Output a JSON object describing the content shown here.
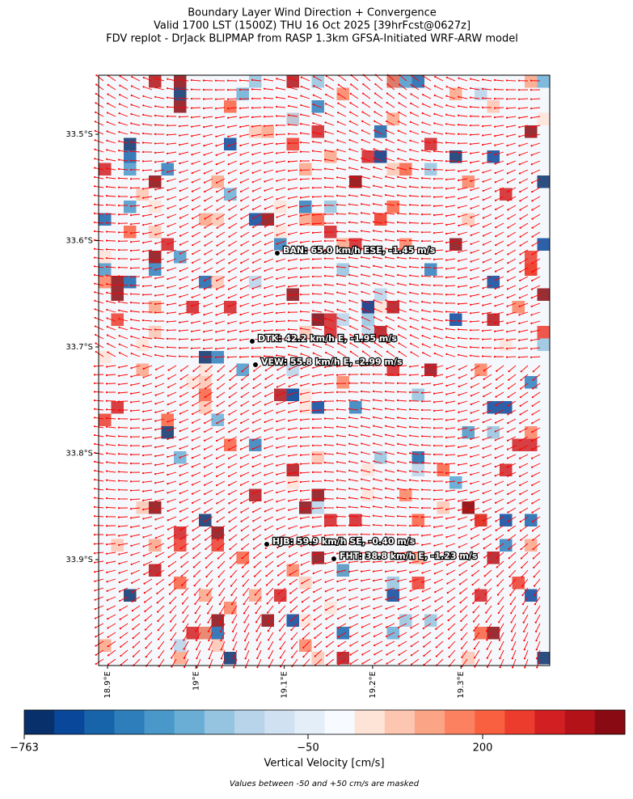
{
  "header": {
    "title": [
      "Boundary Layer Wind Direction + Convergence",
      "Valid 1700 LST (1500Z) THU 16 Oct 2025 [39hrFcst@0627z]",
      "FDV replot - DrJack BLIPMAP from RASP 1.3km GFSA-Initiated WRF-ARW model"
    ]
  },
  "map": {
    "lat_labels": [
      "33.5°S",
      "33.6°S",
      "33.7°S",
      "33.8°S",
      "33.9°S"
    ],
    "lon_labels": [
      "18.9°E",
      "19°E",
      "19.1°E",
      "19.2°E",
      "19.3°E"
    ],
    "stations": [
      "BAN: 65.0 km/h ESE, -1.45 m/s",
      "DTK: 42.2 km/h E, -1.95 m/s",
      "VEW: 55.8 km/h E, -2.99 m/s",
      "HJB: 59.9 km/h SE, -0.40 m/s",
      "FHT: 38.8 km/h E, -1.23 m/s"
    ],
    "arrow_color": "#ff0000"
  },
  "colorbar": {
    "label": "Vertical Velocity [cm/s]",
    "colors": [
      "#08306b",
      "#08479a",
      "#1764ab",
      "#2e7ebc",
      "#4a98c9",
      "#6aaed6",
      "#94c4df",
      "#b7d4ea",
      "#d0e1f2",
      "#e3eef9",
      "#f7fbff",
      "#fee3d7",
      "#fdc6b0",
      "#fca486",
      "#fc8161",
      "#f9603f",
      "#ec3c2d",
      "#d11f22",
      "#b21218",
      "#890a12"
    ],
    "ticks": [
      {
        "value": -763,
        "label": "−763"
      },
      {
        "value": -50,
        "label": "−50"
      },
      200
    ]
  },
  "note": "Values between -50 and +50 cm/s are masked"
}
